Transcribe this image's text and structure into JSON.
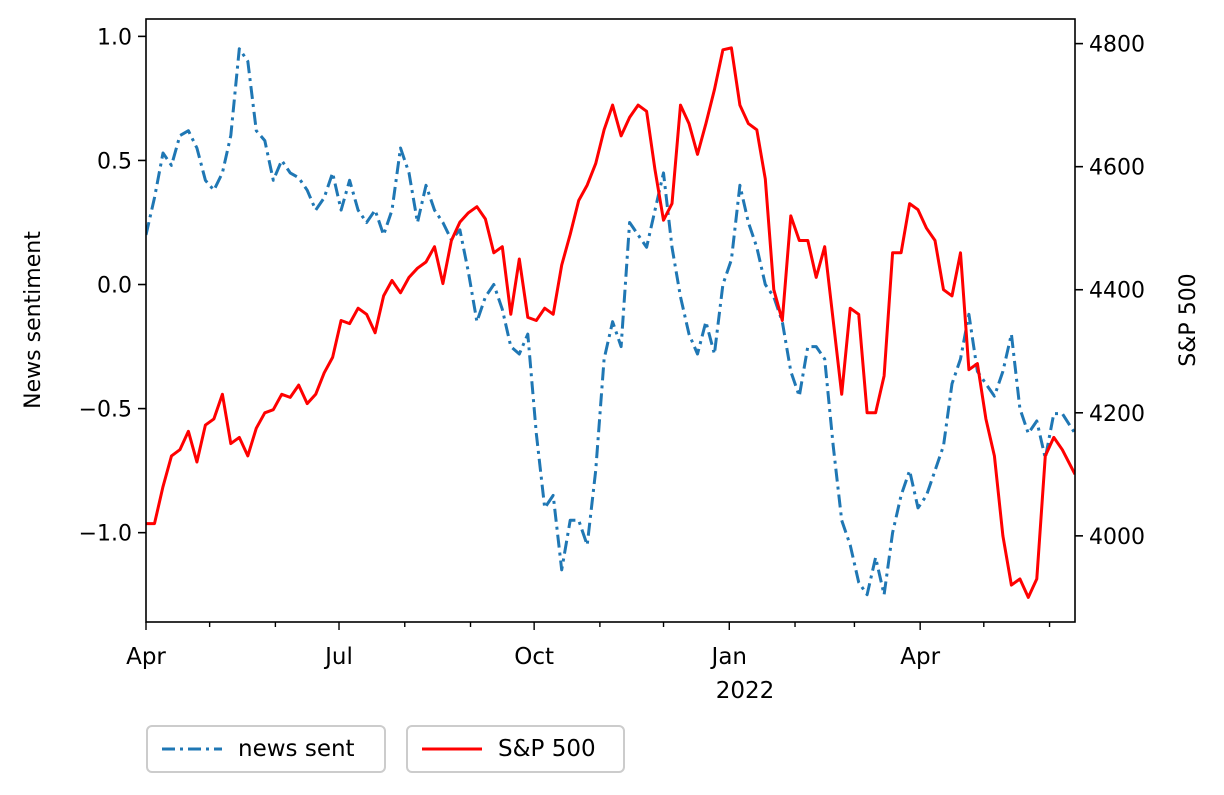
{
  "chart_data": {
    "type": "line",
    "x_tick_labels": [
      "Apr",
      "Jul",
      "Oct",
      "Jan",
      "Apr"
    ],
    "x_year_label": "2022",
    "left_axis": {
      "label": "News sentiment",
      "ticks": [
        1.0,
        0.5,
        0.0,
        -0.5,
        -1.0
      ],
      "tick_labels": [
        "1.0",
        "0.5",
        "0.0",
        "−0.5",
        "−1.0"
      ],
      "range": [
        -1.36,
        1.07
      ]
    },
    "right_axis": {
      "label": "S&P 500",
      "ticks": [
        4800,
        4600,
        4400,
        4200,
        4000
      ],
      "tick_labels": [
        "4800",
        "4600",
        "4400",
        "4200",
        "4000"
      ],
      "range": [
        3860,
        4840
      ]
    },
    "x_range": [
      "2021-04-01",
      "2022-06-13"
    ],
    "series": [
      {
        "name": "news sent",
        "axis": "left",
        "color": "#1f77b4",
        "style": "dashdot",
        "points": [
          [
            "2021-04-01",
            0.2
          ],
          [
            "2021-04-05",
            0.35
          ],
          [
            "2021-04-09",
            0.53
          ],
          [
            "2021-04-13",
            0.48
          ],
          [
            "2021-04-17",
            0.6
          ],
          [
            "2021-04-21",
            0.62
          ],
          [
            "2021-04-25",
            0.55
          ],
          [
            "2021-04-29",
            0.42
          ],
          [
            "2021-05-03",
            0.38
          ],
          [
            "2021-05-07",
            0.45
          ],
          [
            "2021-05-11",
            0.6
          ],
          [
            "2021-05-15",
            0.95
          ],
          [
            "2021-05-19",
            0.9
          ],
          [
            "2021-05-23",
            0.62
          ],
          [
            "2021-05-27",
            0.58
          ],
          [
            "2021-05-31",
            0.42
          ],
          [
            "2021-06-04",
            0.5
          ],
          [
            "2021-06-08",
            0.45
          ],
          [
            "2021-06-12",
            0.43
          ],
          [
            "2021-06-16",
            0.38
          ],
          [
            "2021-06-20",
            0.3
          ],
          [
            "2021-06-24",
            0.35
          ],
          [
            "2021-06-28",
            0.45
          ],
          [
            "2021-07-02",
            0.3
          ],
          [
            "2021-07-06",
            0.42
          ],
          [
            "2021-07-10",
            0.3
          ],
          [
            "2021-07-14",
            0.25
          ],
          [
            "2021-07-18",
            0.3
          ],
          [
            "2021-07-22",
            0.2
          ],
          [
            "2021-07-26",
            0.3
          ],
          [
            "2021-07-30",
            0.55
          ],
          [
            "2021-08-03",
            0.45
          ],
          [
            "2021-08-07",
            0.25
          ],
          [
            "2021-08-11",
            0.4
          ],
          [
            "2021-08-15",
            0.3
          ],
          [
            "2021-08-19",
            0.25
          ],
          [
            "2021-08-23",
            0.18
          ],
          [
            "2021-08-27",
            0.22
          ],
          [
            "2021-08-31",
            0.05
          ],
          [
            "2021-09-04",
            -0.15
          ],
          [
            "2021-09-08",
            -0.05
          ],
          [
            "2021-09-12",
            0.0
          ],
          [
            "2021-09-16",
            -0.1
          ],
          [
            "2021-09-20",
            -0.25
          ],
          [
            "2021-09-24",
            -0.28
          ],
          [
            "2021-09-28",
            -0.2
          ],
          [
            "2021-10-02",
            -0.6
          ],
          [
            "2021-10-06",
            -0.9
          ],
          [
            "2021-10-10",
            -0.85
          ],
          [
            "2021-10-14",
            -1.15
          ],
          [
            "2021-10-18",
            -0.95
          ],
          [
            "2021-10-22",
            -0.95
          ],
          [
            "2021-10-26",
            -1.05
          ],
          [
            "2021-10-30",
            -0.75
          ],
          [
            "2021-11-03",
            -0.3
          ],
          [
            "2021-11-07",
            -0.15
          ],
          [
            "2021-11-11",
            -0.25
          ],
          [
            "2021-11-15",
            0.25
          ],
          [
            "2021-11-19",
            0.2
          ],
          [
            "2021-11-23",
            0.15
          ],
          [
            "2021-11-27",
            0.3
          ],
          [
            "2021-12-01",
            0.45
          ],
          [
            "2021-12-05",
            0.15
          ],
          [
            "2021-12-09",
            -0.05
          ],
          [
            "2021-12-13",
            -0.2
          ],
          [
            "2021-12-17",
            -0.28
          ],
          [
            "2021-12-21",
            -0.15
          ],
          [
            "2021-12-25",
            -0.28
          ],
          [
            "2021-12-29",
            0.0
          ],
          [
            "2022-01-02",
            0.1
          ],
          [
            "2022-01-06",
            0.4
          ],
          [
            "2022-01-10",
            0.25
          ],
          [
            "2022-01-14",
            0.15
          ],
          [
            "2022-01-18",
            0.0
          ],
          [
            "2022-01-22",
            -0.05
          ],
          [
            "2022-01-26",
            -0.15
          ],
          [
            "2022-01-30",
            -0.35
          ],
          [
            "2022-02-03",
            -0.45
          ],
          [
            "2022-02-07",
            -0.25
          ],
          [
            "2022-02-11",
            -0.25
          ],
          [
            "2022-02-15",
            -0.3
          ],
          [
            "2022-02-19",
            -0.65
          ],
          [
            "2022-02-23",
            -0.95
          ],
          [
            "2022-02-27",
            -1.05
          ],
          [
            "2022-03-03",
            -1.2
          ],
          [
            "2022-03-07",
            -1.25
          ],
          [
            "2022-03-11",
            -1.1
          ],
          [
            "2022-03-15",
            -1.25
          ],
          [
            "2022-03-19",
            -1.0
          ],
          [
            "2022-03-23",
            -0.85
          ],
          [
            "2022-03-27",
            -0.75
          ],
          [
            "2022-03-31",
            -0.9
          ],
          [
            "2022-04-04",
            -0.85
          ],
          [
            "2022-04-08",
            -0.75
          ],
          [
            "2022-04-12",
            -0.65
          ],
          [
            "2022-04-16",
            -0.4
          ],
          [
            "2022-04-20",
            -0.3
          ],
          [
            "2022-04-24",
            -0.12
          ],
          [
            "2022-04-28",
            -0.35
          ],
          [
            "2022-05-02",
            -0.4
          ],
          [
            "2022-05-06",
            -0.45
          ],
          [
            "2022-05-10",
            -0.35
          ],
          [
            "2022-05-14",
            -0.2
          ],
          [
            "2022-05-18",
            -0.5
          ],
          [
            "2022-05-22",
            -0.6
          ],
          [
            "2022-05-26",
            -0.55
          ],
          [
            "2022-05-30",
            -0.7
          ],
          [
            "2022-06-03",
            -0.52
          ],
          [
            "2022-06-07",
            -0.52
          ],
          [
            "2022-06-13",
            -0.6
          ]
        ]
      },
      {
        "name": "S&P 500",
        "axis": "right",
        "color": "#ff0000",
        "style": "solid",
        "points": [
          [
            "2021-04-01",
            4020
          ],
          [
            "2021-04-05",
            4020
          ],
          [
            "2021-04-09",
            4080
          ],
          [
            "2021-04-13",
            4130
          ],
          [
            "2021-04-17",
            4140
          ],
          [
            "2021-04-21",
            4170
          ],
          [
            "2021-04-25",
            4120
          ],
          [
            "2021-04-29",
            4180
          ],
          [
            "2021-05-03",
            4190
          ],
          [
            "2021-05-07",
            4230
          ],
          [
            "2021-05-11",
            4150
          ],
          [
            "2021-05-15",
            4160
          ],
          [
            "2021-05-19",
            4130
          ],
          [
            "2021-05-23",
            4175
          ],
          [
            "2021-05-27",
            4200
          ],
          [
            "2021-05-31",
            4205
          ],
          [
            "2021-06-04",
            4230
          ],
          [
            "2021-06-08",
            4225
          ],
          [
            "2021-06-12",
            4245
          ],
          [
            "2021-06-16",
            4215
          ],
          [
            "2021-06-20",
            4230
          ],
          [
            "2021-06-24",
            4265
          ],
          [
            "2021-06-28",
            4290
          ],
          [
            "2021-07-02",
            4350
          ],
          [
            "2021-07-06",
            4345
          ],
          [
            "2021-07-10",
            4370
          ],
          [
            "2021-07-14",
            4360
          ],
          [
            "2021-07-18",
            4330
          ],
          [
            "2021-07-22",
            4390
          ],
          [
            "2021-07-26",
            4415
          ],
          [
            "2021-07-30",
            4395
          ],
          [
            "2021-08-03",
            4420
          ],
          [
            "2021-08-07",
            4435
          ],
          [
            "2021-08-11",
            4445
          ],
          [
            "2021-08-15",
            4470
          ],
          [
            "2021-08-19",
            4410
          ],
          [
            "2021-08-23",
            4480
          ],
          [
            "2021-08-27",
            4510
          ],
          [
            "2021-08-31",
            4525
          ],
          [
            "2021-09-04",
            4535
          ],
          [
            "2021-09-08",
            4515
          ],
          [
            "2021-09-12",
            4460
          ],
          [
            "2021-09-16",
            4470
          ],
          [
            "2021-09-20",
            4360
          ],
          [
            "2021-09-24",
            4450
          ],
          [
            "2021-09-28",
            4355
          ],
          [
            "2021-10-02",
            4350
          ],
          [
            "2021-10-06",
            4370
          ],
          [
            "2021-10-10",
            4360
          ],
          [
            "2021-10-14",
            4440
          ],
          [
            "2021-10-18",
            4490
          ],
          [
            "2021-10-22",
            4545
          ],
          [
            "2021-10-26",
            4570
          ],
          [
            "2021-10-30",
            4605
          ],
          [
            "2021-11-03",
            4660
          ],
          [
            "2021-11-07",
            4700
          ],
          [
            "2021-11-11",
            4650
          ],
          [
            "2021-11-15",
            4680
          ],
          [
            "2021-11-19",
            4700
          ],
          [
            "2021-11-23",
            4690
          ],
          [
            "2021-11-27",
            4595
          ],
          [
            "2021-12-01",
            4513
          ],
          [
            "2021-12-05",
            4540
          ],
          [
            "2021-12-09",
            4700
          ],
          [
            "2021-12-13",
            4670
          ],
          [
            "2021-12-17",
            4620
          ],
          [
            "2021-12-21",
            4670
          ],
          [
            "2021-12-25",
            4725
          ],
          [
            "2021-12-29",
            4790
          ],
          [
            "2022-01-02",
            4793
          ],
          [
            "2022-01-06",
            4700
          ],
          [
            "2022-01-10",
            4670
          ],
          [
            "2022-01-14",
            4660
          ],
          [
            "2022-01-18",
            4580
          ],
          [
            "2022-01-22",
            4400
          ],
          [
            "2022-01-26",
            4350
          ],
          [
            "2022-01-30",
            4520
          ],
          [
            "2022-02-03",
            4480
          ],
          [
            "2022-02-07",
            4480
          ],
          [
            "2022-02-11",
            4420
          ],
          [
            "2022-02-15",
            4470
          ],
          [
            "2022-02-19",
            4350
          ],
          [
            "2022-02-23",
            4230
          ],
          [
            "2022-02-27",
            4370
          ],
          [
            "2022-03-03",
            4360
          ],
          [
            "2022-03-07",
            4200
          ],
          [
            "2022-03-11",
            4200
          ],
          [
            "2022-03-15",
            4260
          ],
          [
            "2022-03-19",
            4460
          ],
          [
            "2022-03-23",
            4460
          ],
          [
            "2022-03-27",
            4540
          ],
          [
            "2022-03-31",
            4530
          ],
          [
            "2022-04-04",
            4500
          ],
          [
            "2022-04-08",
            4480
          ],
          [
            "2022-04-12",
            4400
          ],
          [
            "2022-04-16",
            4390
          ],
          [
            "2022-04-20",
            4460
          ],
          [
            "2022-04-24",
            4270
          ],
          [
            "2022-04-28",
            4280
          ],
          [
            "2022-05-02",
            4190
          ],
          [
            "2022-05-06",
            4130
          ],
          [
            "2022-05-10",
            4000
          ],
          [
            "2022-05-14",
            3920
          ],
          [
            "2022-05-18",
            3930
          ],
          [
            "2022-05-22",
            3900
          ],
          [
            "2022-05-26",
            3930
          ],
          [
            "2022-05-30",
            4130
          ],
          [
            "2022-06-03",
            4160
          ],
          [
            "2022-06-07",
            4140
          ],
          [
            "2022-06-13",
            4100
          ]
        ]
      }
    ],
    "legend": {
      "placement": "below-left",
      "entries": [
        {
          "label": "news sent",
          "color": "#1f77b4",
          "style": "dashdot"
        },
        {
          "label": "S&P 500",
          "color": "#ff0000",
          "style": "solid"
        }
      ]
    },
    "grid": false
  }
}
